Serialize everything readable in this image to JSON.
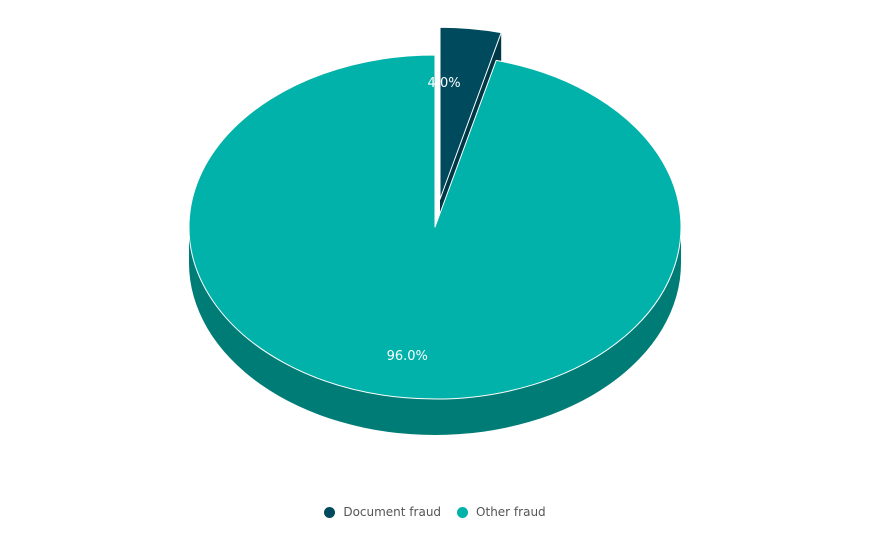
{
  "chart_data": {
    "type": "pie",
    "three_d": true,
    "categories": [
      "Document fraud",
      "Other fraud"
    ],
    "values": [
      4.0,
      96.0
    ],
    "data_labels": [
      "4.0%",
      "96.0%"
    ],
    "colors": [
      "#004a5e",
      "#00b2a9"
    ],
    "side_colors": [
      "#003746",
      "#007c76"
    ],
    "exploded": [
      true,
      false
    ],
    "legend_position": "bottom-center"
  },
  "legend": {
    "items": [
      {
        "label": "Document fraud",
        "color": "#004a5e"
      },
      {
        "label": "Other fraud",
        "color": "#00b2a9"
      }
    ]
  }
}
